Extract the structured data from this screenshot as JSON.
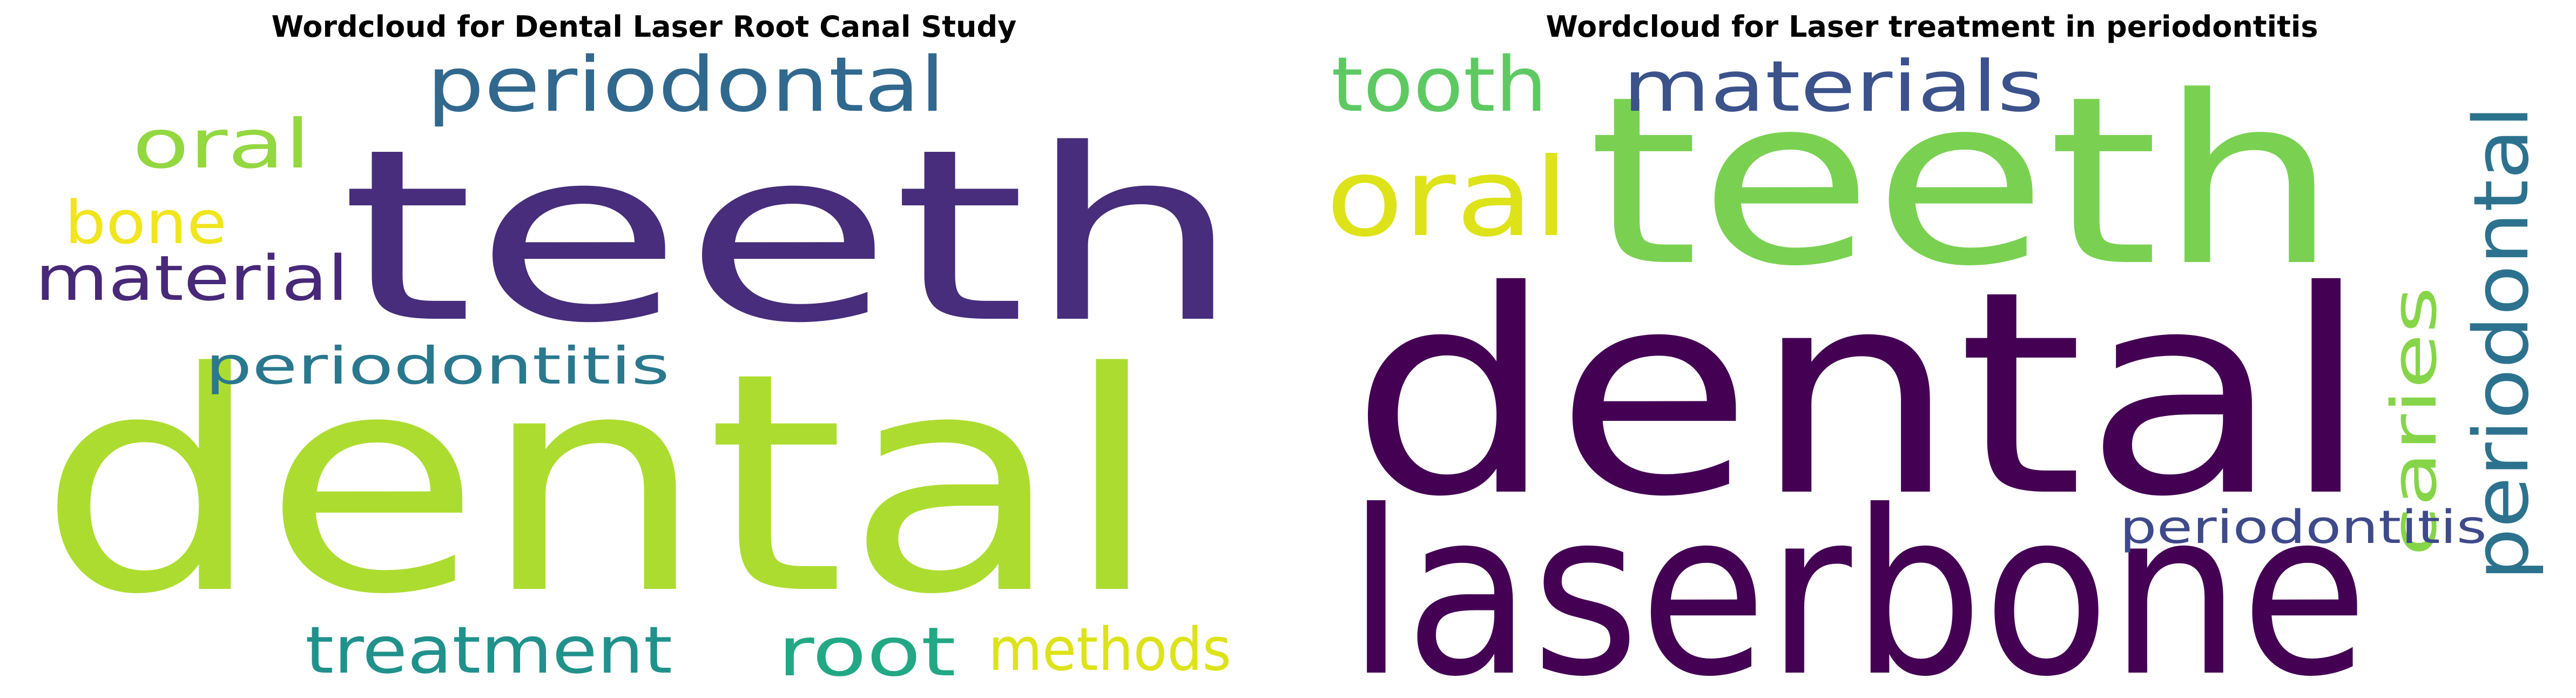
{
  "chart_data": [
    {
      "type": "wordcloud",
      "title": "Wordcloud for Dental Laser Root Canal Study",
      "words": [
        {
          "text": "dental",
          "color": "#addc30"
        },
        {
          "text": "teeth",
          "color": "#472d7b"
        },
        {
          "text": "periodontal",
          "color": "#31688e"
        },
        {
          "text": "oral",
          "color": "#93d741"
        },
        {
          "text": "bone",
          "color": "#f1e51d"
        },
        {
          "text": "material",
          "color": "#482878"
        },
        {
          "text": "periodontitis",
          "color": "#2a788e"
        },
        {
          "text": "treatment",
          "color": "#21918c"
        },
        {
          "text": "root",
          "color": "#22a884"
        },
        {
          "text": "methods",
          "color": "#dde318"
        }
      ]
    },
    {
      "type": "wordcloud",
      "title": "Wordcloud for Laser treatment in periodontitis",
      "words": [
        {
          "text": "dental",
          "color": "#440154"
        },
        {
          "text": "laserbone",
          "color": "#440154"
        },
        {
          "text": "teeth",
          "color": "#7ad151"
        },
        {
          "text": "tooth",
          "color": "#5ec962"
        },
        {
          "text": "materials",
          "color": "#3b528b"
        },
        {
          "text": "oral",
          "color": "#dde318"
        },
        {
          "text": "caries",
          "color": "#86d549"
        },
        {
          "text": "periodontal",
          "color": "#2c728e"
        },
        {
          "text": "periodontitis",
          "color": "#3e4a89"
        }
      ]
    }
  ]
}
